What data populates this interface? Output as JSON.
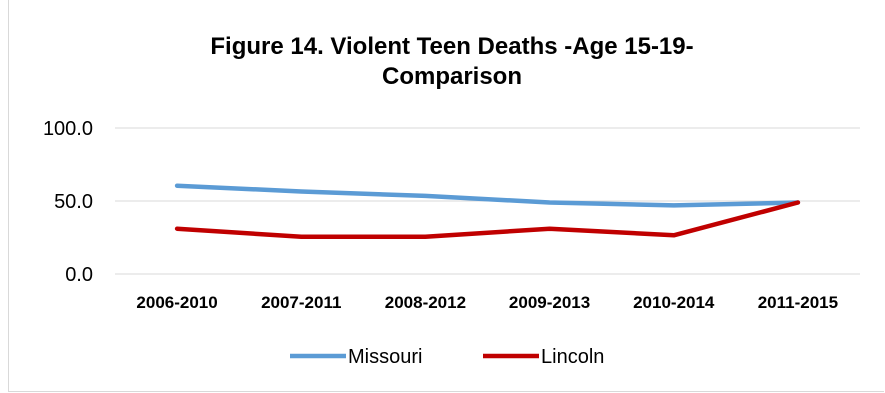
{
  "chart_data": {
    "type": "line",
    "title_lines": [
      "Figure 14. Violent Teen Deaths -Age 15-19-",
      "Comparison"
    ],
    "xlabel": "",
    "ylabel": "",
    "categories": [
      "2006-2010",
      "2007-2011",
      "2008-2012",
      "2009-2013",
      "2010-2014",
      "2011-2015"
    ],
    "yticks": [
      "0.0",
      "50.0",
      "100.0"
    ],
    "ylim": [
      0,
      100
    ],
    "grid": true,
    "legend_position": "bottom",
    "series": [
      {
        "name": "Missouri",
        "color": "#5b9bd5",
        "values": [
          60.5,
          56.5,
          53.5,
          49.0,
          47.0,
          49.0
        ]
      },
      {
        "name": "Lincoln",
        "color": "#c00000",
        "values": [
          31.0,
          25.5,
          25.5,
          31.0,
          26.5,
          49.0
        ]
      }
    ]
  }
}
